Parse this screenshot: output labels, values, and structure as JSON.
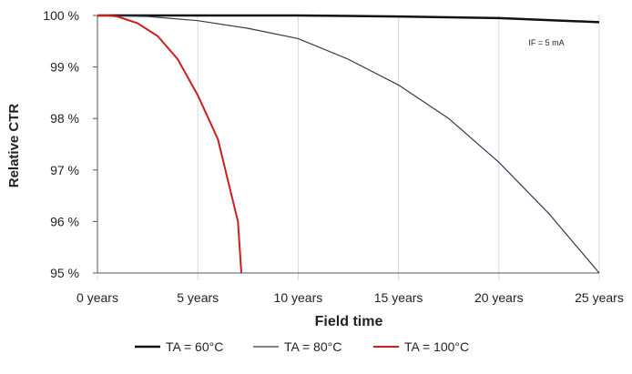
{
  "chart_data": {
    "type": "line",
    "y_label": "Relative CTR",
    "x_label": "Field time",
    "annotation": "IF = 5 mA",
    "xlim": [
      0,
      25
    ],
    "ylim": [
      95,
      100
    ],
    "xticks": [
      {
        "value": 0,
        "label": "0 years"
      },
      {
        "value": 5,
        "label": "5 years"
      },
      {
        "value": 10,
        "label": "10 years"
      },
      {
        "value": 15,
        "label": "15 years"
      },
      {
        "value": 20,
        "label": "20 years"
      },
      {
        "value": 25,
        "label": "25 years"
      }
    ],
    "yticks": [
      {
        "value": 95,
        "label": "95 %"
      },
      {
        "value": 96,
        "label": "96 %"
      },
      {
        "value": 97,
        "label": "97 %"
      },
      {
        "value": 98,
        "label": "98 %"
      },
      {
        "value": 99,
        "label": "99 %"
      },
      {
        "value": 100,
        "label": "100 %"
      }
    ],
    "grid": true,
    "series": [
      {
        "name": "TA = 60°C",
        "color": "#111111",
        "width": 2.5,
        "x": [
          0,
          5,
          10,
          15,
          20,
          25
        ],
        "values": [
          100,
          100,
          100,
          99.98,
          99.95,
          99.87
        ]
      },
      {
        "name": "TA = 80°C",
        "color": "#3a3550",
        "width": 1.2,
        "x": [
          0,
          2.5,
          5,
          7.5,
          10,
          12.5,
          15,
          17.5,
          20,
          22.5,
          25
        ],
        "values": [
          100,
          99.98,
          99.9,
          99.75,
          99.55,
          99.15,
          98.65,
          98.0,
          97.15,
          96.15,
          95.0
        ]
      },
      {
        "name": "TA = 100°C",
        "color": "#cc1f1f",
        "width": 2,
        "x": [
          0,
          0.5,
          1,
          2,
          3,
          4,
          5,
          6,
          7,
          7.17
        ],
        "values": [
          100,
          100,
          99.98,
          99.85,
          99.6,
          99.15,
          98.45,
          97.6,
          96.0,
          95.0
        ]
      }
    ]
  }
}
